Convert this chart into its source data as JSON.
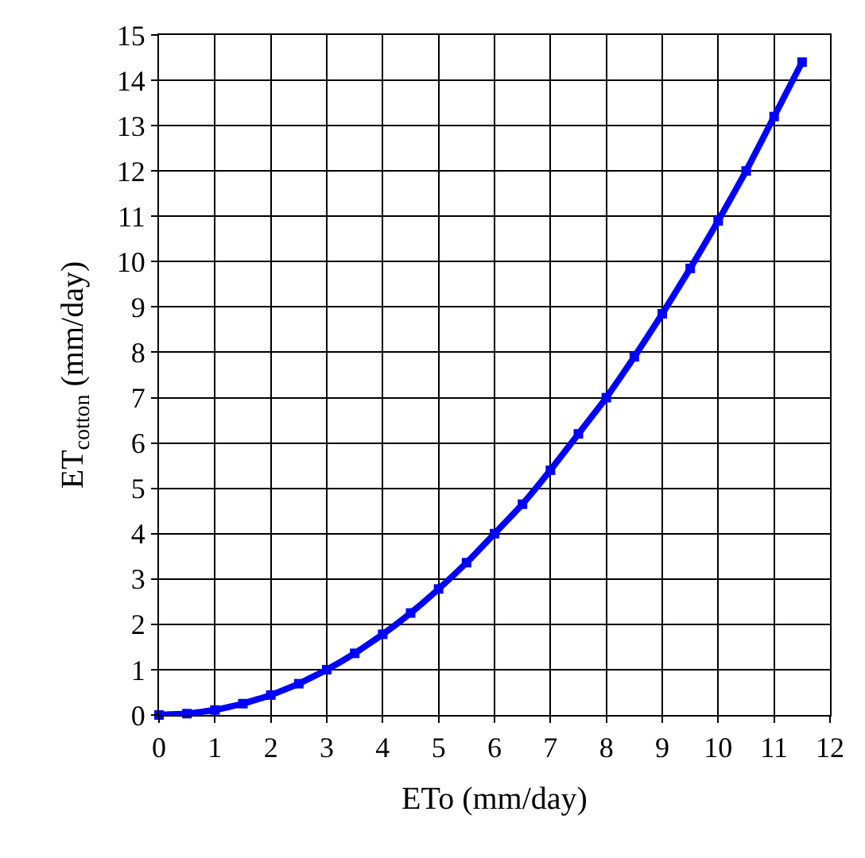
{
  "chart_data": {
    "type": "line",
    "xlabel": "ETo (mm/day)",
    "ylabel": "ET$_{cotton}$ (mm/day)",
    "x": [
      0,
      0.5,
      1,
      1.5,
      2,
      2.5,
      3,
      3.5,
      4,
      4.5,
      5,
      5.5,
      6,
      6.5,
      7,
      7.5,
      8,
      8.5,
      9,
      9.5,
      10,
      10.5,
      11,
      11.5
    ],
    "series": [
      {
        "color": "#0000ff",
        "values": [
          0,
          0.03,
          0.11,
          0.25,
          0.44,
          0.69,
          1.0,
          1.36,
          1.78,
          2.25,
          2.78,
          3.36,
          4.0,
          4.65,
          5.4,
          6.2,
          7.0,
          7.9,
          8.85,
          9.85,
          10.9,
          12.0,
          13.2,
          14.4
        ]
      }
    ],
    "xlim": [
      0,
      12
    ],
    "xticks": [
      0,
      1,
      2,
      3,
      4,
      5,
      6,
      7,
      8,
      9,
      10,
      11,
      12
    ],
    "ylim": [
      0,
      15
    ],
    "yticks": [
      0,
      1,
      2,
      3,
      4,
      5,
      6,
      7,
      8,
      9,
      10,
      11,
      12,
      13,
      14,
      15
    ],
    "grid": true,
    "marker": "square",
    "line_style": "solid"
  }
}
